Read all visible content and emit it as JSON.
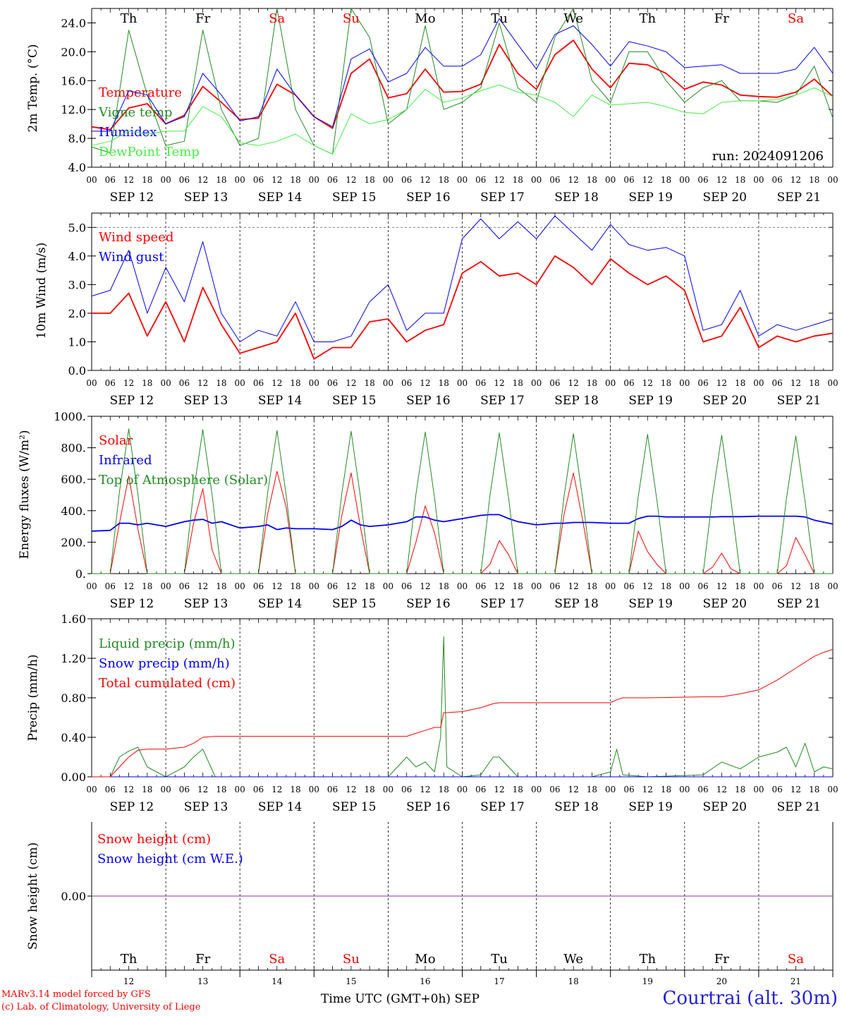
{
  "footer": {
    "credit_line1": "MARv3.14 model forced by GFS",
    "credit_line2": "(c) Lab. of Climatology, University of Liege",
    "x_title": "Time UTC (GMT+0h) SEP",
    "station": "Courtrai (alt. 30m)"
  },
  "run_label": "run: 2024091206",
  "chart_data": [
    {
      "type": "line",
      "ylabel": "2m Temp. (°C)",
      "ylim": [
        4.0,
        26.0
      ],
      "yticks": [
        "4.0",
        "8.0",
        "12.0",
        "16.0",
        "20.0",
        "24.0"
      ],
      "day_labels": [
        {
          "text": "Th",
          "color": "#000000"
        },
        {
          "text": "Fr",
          "color": "#000000"
        },
        {
          "text": "Sa",
          "color": "#ff0000"
        },
        {
          "text": "Su",
          "color": "#ff0000"
        },
        {
          "text": "Mo",
          "color": "#000000"
        },
        {
          "text": "Tu",
          "color": "#000000"
        },
        {
          "text": "We",
          "color": "#000000"
        },
        {
          "text": "Th",
          "color": "#000000"
        },
        {
          "text": "Fr",
          "color": "#000000"
        },
        {
          "text": "Sa",
          "color": "#ff0000"
        }
      ],
      "x_hours": [
        0,
        6,
        12,
        18,
        24,
        30,
        36,
        42,
        48,
        54,
        60,
        66,
        72,
        78,
        84,
        90,
        96,
        102,
        108,
        114,
        120,
        126,
        132,
        138,
        144,
        150,
        156,
        162,
        168,
        174,
        180,
        186,
        192,
        198,
        204,
        210,
        216,
        222,
        228,
        234,
        240
      ],
      "series": [
        {
          "name": "Temperature",
          "color": "#ff0000",
          "width": 1.8,
          "values": [
            9.6,
            9.2,
            12.2,
            12.8,
            10.0,
            11.2,
            15.2,
            13.0,
            10.6,
            10.8,
            15.5,
            14.0,
            11.0,
            9.4,
            17.0,
            19.0,
            13.6,
            14.2,
            17.6,
            14.4,
            14.5,
            15.5,
            21.0,
            17.0,
            14.8,
            19.6,
            21.6,
            17.6,
            15.0,
            18.4,
            18.2,
            17.0,
            14.8,
            15.8,
            15.4,
            14.0,
            13.8,
            13.7,
            14.4,
            16.2,
            13.8
          ]
        },
        {
          "name": "Vigne temp",
          "color": "#228b22",
          "width": 1.0,
          "values": [
            6.8,
            6.0,
            23.0,
            14.0,
            7.0,
            7.6,
            23.0,
            12.0,
            7.0,
            8.0,
            26.0,
            12.0,
            7.0,
            5.8,
            26.0,
            22.0,
            10.0,
            12.0,
            23.6,
            12.0,
            13.0,
            15.0,
            24.0,
            15.0,
            13.0,
            22.0,
            26.0,
            16.0,
            13.0,
            20.0,
            20.0,
            16.0,
            13.0,
            15.0,
            16.0,
            13.2,
            13.2,
            13.0,
            14.0,
            18.0,
            10.8
          ]
        },
        {
          "name": "Humidex",
          "color": "#0000ff",
          "width": 1.0,
          "values": [
            9.0,
            9.0,
            14.6,
            14.0,
            10.0,
            11.0,
            17.0,
            14.0,
            10.4,
            11.0,
            17.6,
            14.0,
            11.0,
            9.6,
            19.0,
            20.4,
            15.8,
            17.0,
            20.6,
            18.0,
            18.0,
            19.6,
            24.6,
            21.0,
            17.6,
            22.4,
            23.6,
            21.0,
            18.0,
            21.4,
            20.8,
            20.0,
            17.8,
            18.0,
            18.2,
            17.0,
            17.0,
            17.0,
            17.6,
            20.6,
            17.0
          ]
        },
        {
          "name": "DewPoint Temp",
          "color": "#44ee44",
          "width": 1.0,
          "values": [
            7.0,
            7.6,
            9.0,
            8.6,
            9.0,
            9.0,
            12.4,
            11.0,
            7.4,
            7.0,
            7.6,
            8.6,
            7.0,
            5.8,
            11.4,
            10.0,
            10.6,
            12.0,
            14.8,
            13.0,
            13.6,
            14.6,
            15.4,
            14.4,
            14.0,
            13.0,
            11.0,
            14.0,
            12.6,
            12.8,
            13.0,
            12.4,
            11.6,
            11.4,
            13.0,
            13.2,
            13.2,
            13.4,
            14.0,
            15.0,
            13.8
          ]
        }
      ]
    },
    {
      "type": "line",
      "ylabel": "10m Wind (m/s)",
      "ylim": [
        0.0,
        5.5
      ],
      "yticks": [
        "0.0",
        "1.0",
        "2.0",
        "3.0",
        "4.0",
        "5.0"
      ],
      "x_hours": [
        0,
        6,
        12,
        18,
        24,
        30,
        36,
        42,
        48,
        54,
        60,
        66,
        72,
        78,
        84,
        90,
        96,
        102,
        108,
        114,
        120,
        126,
        132,
        138,
        144,
        150,
        156,
        162,
        168,
        174,
        180,
        186,
        192,
        198,
        204,
        210,
        216,
        222,
        228,
        234,
        240
      ],
      "series": [
        {
          "name": "Wind speed",
          "color": "#ff0000",
          "width": 1.8,
          "values": [
            2.0,
            2.0,
            2.7,
            1.2,
            2.4,
            1.0,
            2.9,
            1.6,
            0.6,
            0.8,
            1.0,
            2.0,
            0.4,
            0.8,
            0.8,
            1.7,
            1.8,
            1.0,
            1.4,
            1.6,
            3.4,
            3.8,
            3.3,
            3.4,
            3.0,
            4.0,
            3.6,
            3.0,
            3.9,
            3.4,
            3.0,
            3.3,
            2.8,
            1.0,
            1.2,
            2.2,
            0.8,
            1.2,
            1.0,
            1.2,
            1.3
          ]
        },
        {
          "name": "Wind gust",
          "color": "#0000ff",
          "width": 1.0,
          "values": [
            2.6,
            2.8,
            4.2,
            2.0,
            3.6,
            2.4,
            4.5,
            2.0,
            1.0,
            1.4,
            1.2,
            2.4,
            1.0,
            1.0,
            1.2,
            2.4,
            3.0,
            1.4,
            2.0,
            2.0,
            4.6,
            5.3,
            4.6,
            5.2,
            4.6,
            5.4,
            4.8,
            4.2,
            5.1,
            4.4,
            4.2,
            4.3,
            4.0,
            1.4,
            1.6,
            2.8,
            1.2,
            1.6,
            1.4,
            1.6,
            1.8
          ]
        }
      ],
      "reference_line": 5.0
    },
    {
      "type": "line",
      "ylabel": "Energy fluxes (W/m²)",
      "ylim": [
        0,
        1000
      ],
      "yticks": [
        "0.",
        "200.",
        "400.",
        "600.",
        "800.",
        "1000."
      ],
      "x_hours": [
        0,
        6,
        9,
        12,
        15,
        18,
        24,
        30,
        33,
        36,
        39,
        42,
        48,
        54,
        57,
        60,
        63,
        66,
        72,
        78,
        81,
        84,
        87,
        90,
        96,
        102,
        105,
        108,
        111,
        114,
        120,
        126,
        129,
        132,
        135,
        138,
        144,
        150,
        153,
        156,
        159,
        162,
        168,
        174,
        177,
        180,
        183,
        186,
        192,
        198,
        201,
        204,
        207,
        210,
        216,
        222,
        225,
        228,
        231,
        234,
        240
      ],
      "series": [
        {
          "name": "Solar",
          "color": "#ff0000",
          "width": 1.0,
          "values": [
            0,
            0,
            320,
            620,
            280,
            0,
            0,
            0,
            320,
            540,
            150,
            0,
            0,
            0,
            380,
            650,
            420,
            0,
            0,
            0,
            370,
            640,
            300,
            0,
            0,
            0,
            200,
            430,
            260,
            0,
            0,
            0,
            60,
            210,
            120,
            0,
            0,
            0,
            380,
            640,
            340,
            0,
            0,
            0,
            270,
            140,
            60,
            0,
            0,
            0,
            40,
            130,
            30,
            0,
            0,
            0,
            50,
            230,
            120,
            0,
            0
          ]
        },
        {
          "name": "Infrared",
          "color": "#0000ff",
          "width": 1.8,
          "values": [
            270,
            275,
            320,
            320,
            310,
            320,
            300,
            330,
            340,
            345,
            320,
            330,
            290,
            300,
            310,
            280,
            290,
            285,
            285,
            280,
            300,
            340,
            310,
            300,
            310,
            330,
            360,
            360,
            340,
            330,
            350,
            370,
            375,
            375,
            350,
            330,
            310,
            320,
            320,
            325,
            325,
            325,
            320,
            320,
            350,
            365,
            365,
            360,
            360,
            360,
            360,
            362,
            362,
            362,
            365,
            365,
            365,
            365,
            360,
            340,
            315
          ]
        },
        {
          "name": "Top of Atmosphere (Solar)",
          "color": "#228b22",
          "width": 1.0,
          "values": [
            0,
            0,
            520,
            920,
            500,
            0,
            0,
            0,
            520,
            915,
            500,
            0,
            0,
            0,
            515,
            910,
            495,
            0,
            0,
            0,
            510,
            905,
            490,
            0,
            0,
            0,
            505,
            900,
            485,
            0,
            0,
            0,
            500,
            895,
            480,
            0,
            0,
            0,
            495,
            890,
            475,
            0,
            0,
            0,
            490,
            885,
            470,
            0,
            0,
            0,
            485,
            880,
            465,
            0,
            0,
            0,
            480,
            875,
            460,
            0,
            0
          ]
        }
      ]
    },
    {
      "type": "line",
      "ylabel": "Precip (mm/h)",
      "ylim": [
        0.0,
        1.6
      ],
      "yticks": [
        "0.00",
        "0.40",
        "0.80",
        "1.20",
        "1.60"
      ],
      "x_hours": [
        0,
        6,
        9,
        12,
        15,
        18,
        24,
        30,
        33,
        36,
        40,
        48,
        96,
        102,
        105,
        108,
        111,
        113,
        114,
        115,
        120,
        126,
        130,
        132,
        138,
        144,
        162,
        168,
        170,
        172,
        180,
        198,
        204,
        210,
        216,
        222,
        225,
        228,
        231,
        234,
        237,
        240
      ],
      "series": [
        {
          "name": "Liquid precip (mm/h)",
          "color": "#228b22",
          "width": 1.0,
          "values": [
            0,
            0,
            0.2,
            0.26,
            0.3,
            0.1,
            0,
            0.1,
            0.2,
            0.28,
            0,
            0,
            0,
            0.2,
            0.1,
            0.15,
            0.05,
            0.4,
            1.42,
            0.1,
            0,
            0.02,
            0.2,
            0.2,
            0,
            0,
            0,
            0.05,
            0.28,
            0.02,
            0,
            0.02,
            0.15,
            0.08,
            0.2,
            0.25,
            0.3,
            0.1,
            0.34,
            0.05,
            0.1,
            0.08
          ]
        },
        {
          "name": "Snow precip (mm/h)",
          "color": "#0000ff",
          "width": 1.0,
          "values": [
            0,
            0,
            0,
            0,
            0,
            0,
            0,
            0,
            0,
            0,
            0,
            0,
            0,
            0,
            0,
            0,
            0,
            0,
            0,
            0,
            0,
            0,
            0,
            0,
            0,
            0,
            0,
            0,
            0,
            0,
            0,
            0,
            0,
            0,
            0,
            0,
            0,
            0,
            0,
            0,
            0,
            0
          ]
        },
        {
          "name": "Total cumulated (cm)",
          "color": "#ff0000",
          "width": 1.0,
          "values": [
            0,
            0,
            0.1,
            0.2,
            0.27,
            0.28,
            0.28,
            0.3,
            0.34,
            0.4,
            0.41,
            0.41,
            0.41,
            0.41,
            0.44,
            0.47,
            0.5,
            0.5,
            0.65,
            0.65,
            0.66,
            0.7,
            0.74,
            0.75,
            0.75,
            0.75,
            0.75,
            0.75,
            0.78,
            0.8,
            0.8,
            0.81,
            0.81,
            0.84,
            0.88,
            0.98,
            1.04,
            1.1,
            1.16,
            1.22,
            1.26,
            1.29
          ]
        }
      ]
    },
    {
      "type": "line",
      "ylabel": "Snow height (cm)",
      "ylim": [
        -1.0,
        1.0
      ],
      "yticks": [
        "0.00"
      ],
      "x_hours": [
        0,
        240
      ],
      "series": [
        {
          "name": "Snow height (cm)",
          "color": "#ff0000",
          "width": 1.0,
          "values": [
            0,
            0
          ]
        },
        {
          "name": "Snow height (cm W.E.)",
          "color": "#0000ff",
          "width": 1.0,
          "values": [
            0,
            0
          ]
        }
      ],
      "line_color": "#8833aa",
      "day_labels": [
        {
          "text": "Th",
          "color": "#000000"
        },
        {
          "text": "Fr",
          "color": "#000000"
        },
        {
          "text": "Sa",
          "color": "#ff0000"
        },
        {
          "text": "Su",
          "color": "#ff0000"
        },
        {
          "text": "Mo",
          "color": "#000000"
        },
        {
          "text": "Tu",
          "color": "#000000"
        },
        {
          "text": "We",
          "color": "#000000"
        },
        {
          "text": "Th",
          "color": "#000000"
        },
        {
          "text": "Fr",
          "color": "#000000"
        },
        {
          "text": "Sa",
          "color": "#ff0000"
        }
      ],
      "day_numbers": [
        "12",
        "13",
        "14",
        "15",
        "16",
        "17",
        "18",
        "19",
        "20",
        "21"
      ]
    }
  ],
  "x_axis": {
    "hour_labels": [
      "00",
      "06",
      "12",
      "18"
    ],
    "end_label": "00",
    "dates": [
      "SEP 12",
      "SEP 13",
      "SEP 14",
      "SEP 15",
      "SEP 16",
      "SEP 17",
      "SEP 18",
      "SEP 19",
      "SEP 20",
      "SEP 21"
    ]
  }
}
